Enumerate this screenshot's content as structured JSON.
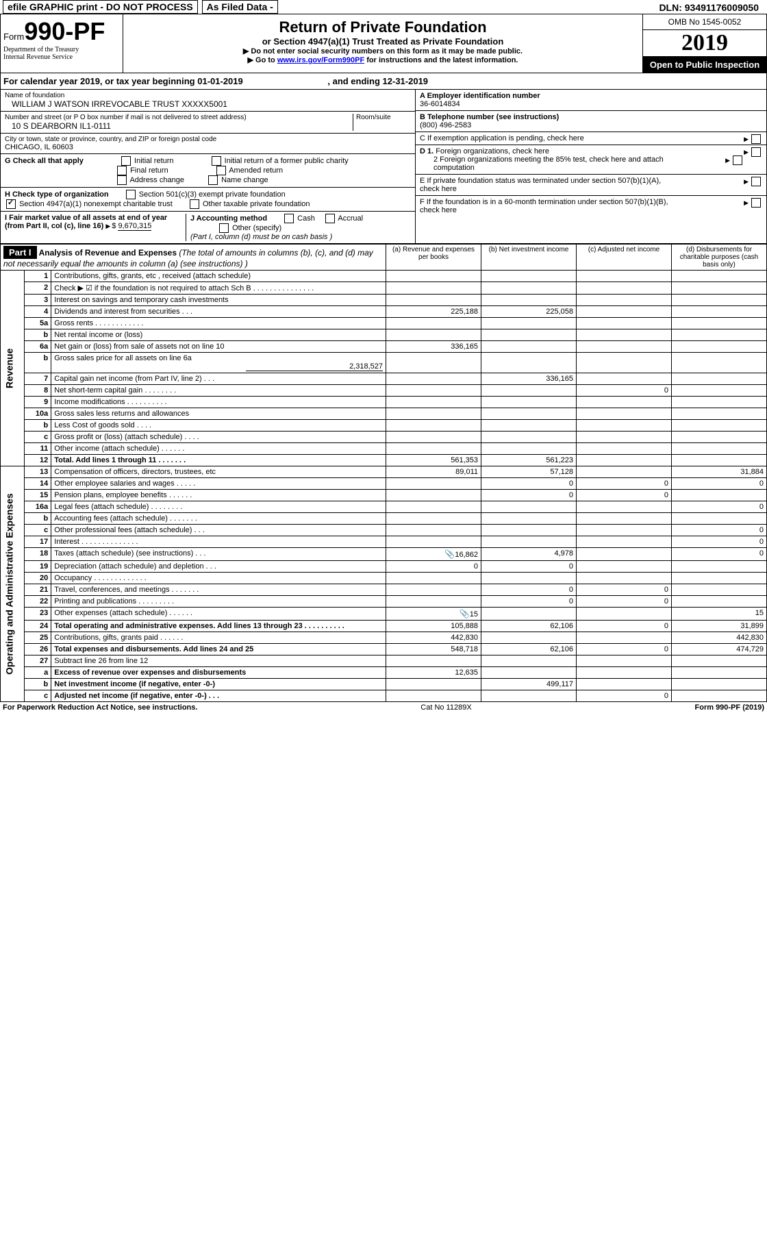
{
  "topbar": {
    "efile": "efile GRAPHIC print - DO NOT PROCESS",
    "asfiled": "As Filed Data -",
    "dln_label": "DLN:",
    "dln": "93491176009050"
  },
  "header": {
    "form_prefix": "Form",
    "form_no": "990-PF",
    "dept1": "Department of the Treasury",
    "dept2": "Internal Revenue Service",
    "title": "Return of Private Foundation",
    "subtitle": "or Section 4947(a)(1) Trust Treated as Private Foundation",
    "note1": "▶ Do not enter social security numbers on this form as it may be made public.",
    "note2_pre": "▶ Go to ",
    "note2_link": "www.irs.gov/Form990PF",
    "note2_post": " for instructions and the latest information.",
    "omb": "OMB No 1545-0052",
    "year": "2019",
    "inspection": "Open to Public Inspection"
  },
  "yearline": {
    "pre": "For calendar year 2019, or tax year beginning ",
    "begin": "01-01-2019",
    "mid": ", and ending ",
    "end": "12-31-2019"
  },
  "id": {
    "name_label": "Name of foundation",
    "name": "WILLIAM J WATSON IRREVOCABLE TRUST XXXXX5001",
    "addr_label": "Number and street (or P O  box number if mail is not delivered to street address)",
    "room_label": "Room/suite",
    "addr": "10 S DEARBORN IL1-0111",
    "city_label": "City or town, state or province, country, and ZIP or foreign postal code",
    "city": "CHICAGO, IL  60603",
    "ein_label": "A Employer identification number",
    "ein": "36-6014834",
    "phone_label": "B Telephone number (see instructions)",
    "phone": "(800) 496-2583",
    "c_label": "C  If exemption application is pending, check here",
    "g_label": "G Check all that apply",
    "g_opts": {
      "initial": "Initial return",
      "initial_former": "Initial return of a former public charity",
      "final": "Final return",
      "amended": "Amended return",
      "addr_change": "Address change",
      "name_change": "Name change"
    },
    "h_label": "H Check type of organization",
    "h_501c3": "Section 501(c)(3) exempt private foundation",
    "h_4947": "Section 4947(a)(1) nonexempt charitable trust",
    "h_other": "Other taxable private foundation",
    "d1_label": "D 1. Foreign organizations, check here",
    "d2_label": "2  Foreign organizations meeting the 85% test, check here and attach computation",
    "e_label": "E  If private foundation status was terminated under section 507(b)(1)(A), check here",
    "f_label": "F  If the foundation is in a 60-month termination under section 507(b)(1)(B), check here",
    "i_label": "I Fair market value of all assets at end of year (from Part II, col  (c), line 16)",
    "i_val": "9,670,315",
    "j_label": "J Accounting method",
    "j_cash": "Cash",
    "j_accrual": "Accrual",
    "j_other": "Other (specify)",
    "j_note": "(Part I, column (d) must be on cash basis )"
  },
  "part1": {
    "label": "Part I",
    "title": "Analysis of Revenue and Expenses",
    "title_note": "(The total of amounts in columns (b), (c), and (d) may not necessarily equal the amounts in column (a) (see instructions) )",
    "cols": {
      "a": "(a) Revenue and expenses per books",
      "b": "(b) Net investment income",
      "c": "(c) Adjusted net income",
      "d": "(d) Disbursements for charitable purposes (cash basis only)"
    },
    "side_rev": "Revenue",
    "side_exp": "Operating and Administrative Expenses",
    "rows": [
      {
        "n": "1",
        "t": "Contributions, gifts, grants, etc , received (attach schedule)"
      },
      {
        "n": "2",
        "t": "Check ▶ ☑ if the foundation is not required to attach Sch  B   .   .   .   .   .   .   .   .   .   .   .   .   .   .   ."
      },
      {
        "n": "3",
        "t": "Interest on savings and temporary cash investments"
      },
      {
        "n": "4",
        "t": "Dividends and interest from securities    .   .   .",
        "a": "225,188",
        "b": "225,058"
      },
      {
        "n": "5a",
        "t": "Gross rents    .   .   .   .   .   .   .   .   .   .   .   ."
      },
      {
        "n": "b",
        "t": "Net rental income or (loss)"
      },
      {
        "n": "6a",
        "t": "Net gain or (loss) from sale of assets not on line 10",
        "a": "336,165"
      },
      {
        "n": "b",
        "t": "Gross sales price for all assets on line 6a",
        "inline": "2,318,527"
      },
      {
        "n": "7",
        "t": "Capital gain net income (from Part IV, line 2)    .   .   .",
        "b": "336,165"
      },
      {
        "n": "8",
        "t": "Net short-term capital gain   .   .   .   .   .   .   .   .",
        "c": "0"
      },
      {
        "n": "9",
        "t": "Income modifications  .   .   .   .   .   .   .   .   .   ."
      },
      {
        "n": "10a",
        "t": "Gross sales less returns and allowances"
      },
      {
        "n": "b",
        "t": "Less  Cost of goods sold    .   .   .   ."
      },
      {
        "n": "c",
        "t": "Gross profit or (loss) (attach schedule)    .   .   .   ."
      },
      {
        "n": "11",
        "t": "Other income (attach schedule)    .   .   .   .   .   ."
      },
      {
        "n": "12",
        "t": "Total. Add lines 1 through 11    .   .   .   .   .   .   .",
        "bold": true,
        "a": "561,353",
        "b": "561,223"
      },
      {
        "n": "13",
        "t": "Compensation of officers, directors, trustees, etc",
        "a": "89,011",
        "b": "57,128",
        "d": "31,884"
      },
      {
        "n": "14",
        "t": "Other employee salaries and wages    .   .   .   .   .",
        "b": "0",
        "c": "0",
        "d": "0"
      },
      {
        "n": "15",
        "t": "Pension plans, employee benefits   .   .   .   .   .   .",
        "b": "0",
        "c": "0"
      },
      {
        "n": "16a",
        "t": "Legal fees (attach schedule) .   .   .   .   .   .   .   .",
        "d": "0"
      },
      {
        "n": "b",
        "t": "Accounting fees (attach schedule) .   .   .   .   .   .   ."
      },
      {
        "n": "c",
        "t": "Other professional fees (attach schedule)    .   .   .",
        "d": "0"
      },
      {
        "n": "17",
        "t": "Interest  .   .   .   .   .   .   .   .   .   .   .   .   .   .",
        "d": "0"
      },
      {
        "n": "18",
        "t": "Taxes (attach schedule) (see instructions)    .   .   .",
        "icon": true,
        "a": "16,862",
        "b": "4,978",
        "d": "0"
      },
      {
        "n": "19",
        "t": "Depreciation (attach schedule) and depletion   .   .   .",
        "a": "0",
        "b": "0"
      },
      {
        "n": "20",
        "t": "Occupancy    .   .   .   .   .   .   .   .   .   .   .   .   ."
      },
      {
        "n": "21",
        "t": "Travel, conferences, and meetings .   .   .   .   .   .   .",
        "b": "0",
        "c": "0"
      },
      {
        "n": "22",
        "t": "Printing and publications .   .   .   .   .   .   .   .   .",
        "b": "0",
        "c": "0"
      },
      {
        "n": "23",
        "t": "Other expenses (attach schedule)  .   .   .   .   .   .",
        "icon": true,
        "a": "15",
        "d": "15"
      },
      {
        "n": "24",
        "t": "Total operating and administrative expenses. Add lines 13 through 23   .   .   .   .   .   .   .   .   .   .",
        "bold": true,
        "a": "105,888",
        "b": "62,106",
        "c": "0",
        "d": "31,899"
      },
      {
        "n": "25",
        "t": "Contributions, gifts, grants paid    .   .   .   .   .   .",
        "a": "442,830",
        "d": "442,830"
      },
      {
        "n": "26",
        "t": "Total expenses and disbursements. Add lines 24 and 25",
        "bold": true,
        "a": "548,718",
        "b": "62,106",
        "c": "0",
        "d": "474,729"
      },
      {
        "n": "27",
        "t": "Subtract line 26 from line 12"
      },
      {
        "n": "a",
        "t": "Excess of revenue over expenses and disbursements",
        "bold": true,
        "a": "12,635"
      },
      {
        "n": "b",
        "t": "Net investment income (if negative, enter -0-)",
        "bold": true,
        "b": "499,117"
      },
      {
        "n": "c",
        "t": "Adjusted net income (if negative, enter -0-)   .   .   .",
        "bold": true,
        "c": "0"
      }
    ]
  },
  "footer": {
    "left": "For Paperwork Reduction Act Notice, see instructions.",
    "mid": "Cat No  11289X",
    "right": "Form 990-PF (2019)"
  }
}
